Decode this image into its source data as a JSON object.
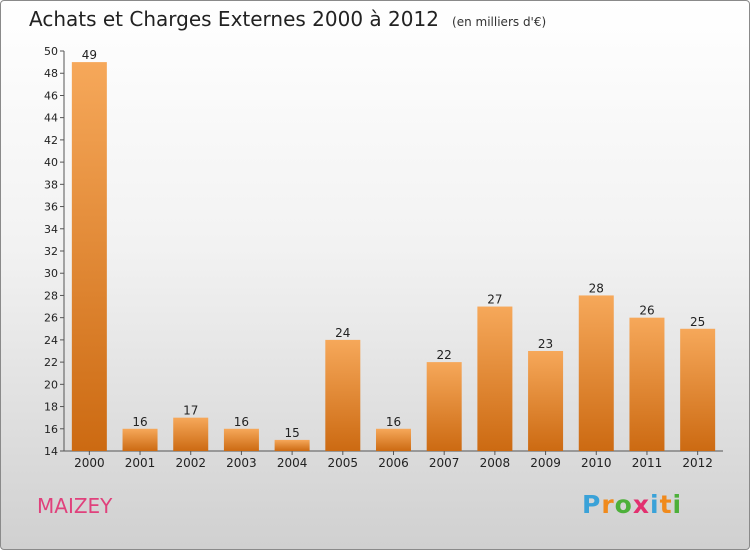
{
  "chart_data": {
    "type": "bar",
    "title": "Achats et Charges Externes 2000 à 2012",
    "subtitle": "(en milliers d'€)",
    "categories": [
      "2000",
      "2001",
      "2002",
      "2003",
      "2004",
      "2005",
      "2006",
      "2007",
      "2008",
      "2009",
      "2010",
      "2011",
      "2012"
    ],
    "values": [
      49,
      16,
      17,
      16,
      15,
      24,
      16,
      22,
      27,
      23,
      28,
      26,
      25
    ],
    "ylim": [
      14,
      50
    ],
    "yticks": [
      "14",
      "16",
      "18",
      "20",
      "22",
      "24",
      "26",
      "28",
      "30",
      "32",
      "34",
      "36",
      "38",
      "40",
      "42",
      "44",
      "46",
      "48",
      "50"
    ],
    "grid": false,
    "bar_color": "#e8862f"
  },
  "footer": {
    "place": "MAIZEY",
    "logo_letters": [
      "P",
      "r",
      "o",
      "x",
      "i",
      "t",
      "i"
    ],
    "logo_colors": [
      "#3aa2d8",
      "#f08a1c",
      "#4db03a",
      "#e2306f",
      "#3aa2d8",
      "#f08a1c",
      "#4db03a"
    ]
  }
}
